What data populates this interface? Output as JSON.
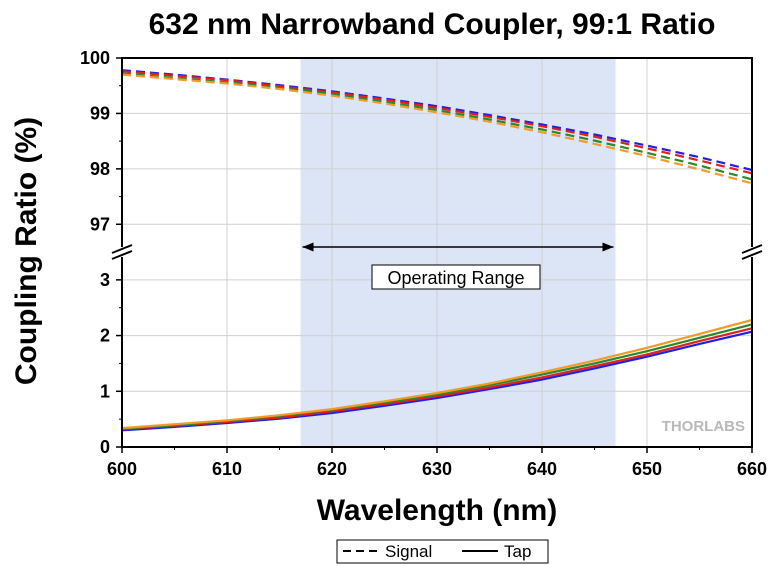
{
  "chart_data": {
    "type": "line",
    "title": "632 nm Narrowband Coupler, 99:1 Ratio",
    "xlabel": "Wavelength (nm)",
    "ylabel": "Coupling Ratio (%)",
    "xlim": [
      600,
      660
    ],
    "x_ticks": [
      "600",
      "610",
      "620",
      "630",
      "640",
      "650",
      "660"
    ],
    "y_upper": {
      "ylim": [
        96.5,
        100
      ],
      "ticks": [
        "97",
        "98",
        "99",
        "100"
      ]
    },
    "y_lower": {
      "ylim": [
        0,
        3.5
      ],
      "ticks": [
        "0",
        "1",
        "2",
        "3"
      ]
    },
    "grid": true,
    "operating_range": {
      "label": "Operating Range",
      "x_start": 617,
      "x_end": 647,
      "color": "#dce5f5"
    },
    "x": [
      600,
      605,
      610,
      615,
      620,
      625,
      630,
      635,
      640,
      645,
      650,
      655,
      660
    ],
    "series": [
      {
        "color": "#2020e0",
        "style": "dashed",
        "panel": "upper",
        "values": [
          99.78,
          99.7,
          99.61,
          99.51,
          99.4,
          99.27,
          99.13,
          98.97,
          98.8,
          98.62,
          98.42,
          98.21,
          97.98
        ]
      },
      {
        "color": "#e02020",
        "style": "dashed",
        "panel": "upper",
        "values": [
          99.76,
          99.68,
          99.6,
          99.49,
          99.38,
          99.25,
          99.1,
          98.94,
          98.77,
          98.58,
          98.37,
          98.15,
          97.92
        ]
      },
      {
        "color": "#2a8a2a",
        "style": "dashed",
        "panel": "upper",
        "values": [
          99.72,
          99.64,
          99.56,
          99.46,
          99.35,
          99.21,
          99.06,
          98.89,
          98.71,
          98.51,
          98.29,
          98.06,
          97.81
        ]
      },
      {
        "color": "#f39a2b",
        "style": "dashed",
        "panel": "upper",
        "values": [
          99.7,
          99.62,
          99.54,
          99.44,
          99.32,
          99.18,
          99.02,
          98.85,
          98.66,
          98.45,
          98.23,
          97.99,
          97.74
        ]
      },
      {
        "color": "#2020e0",
        "style": "solid",
        "panel": "lower",
        "values": [
          0.3,
          0.36,
          0.43,
          0.51,
          0.61,
          0.74,
          0.88,
          1.04,
          1.21,
          1.41,
          1.62,
          1.85,
          2.07
        ]
      },
      {
        "color": "#e02020",
        "style": "solid",
        "panel": "lower",
        "values": [
          0.32,
          0.38,
          0.45,
          0.53,
          0.64,
          0.77,
          0.91,
          1.07,
          1.25,
          1.45,
          1.66,
          1.9,
          2.13
        ]
      },
      {
        "color": "#2a8a2a",
        "style": "solid",
        "panel": "lower",
        "values": [
          0.33,
          0.39,
          0.47,
          0.56,
          0.67,
          0.8,
          0.94,
          1.11,
          1.3,
          1.5,
          1.72,
          1.96,
          2.2
        ]
      },
      {
        "color": "#f39a2b",
        "style": "solid",
        "panel": "lower",
        "values": [
          0.34,
          0.41,
          0.48,
          0.57,
          0.68,
          0.82,
          0.97,
          1.14,
          1.34,
          1.55,
          1.78,
          2.03,
          2.28
        ]
      }
    ],
    "legend": [
      {
        "label": "Signal",
        "style": "dashed"
      },
      {
        "label": "Tap",
        "style": "solid"
      }
    ],
    "legend_position": "bottom-center",
    "watermark": "THORLABS"
  }
}
